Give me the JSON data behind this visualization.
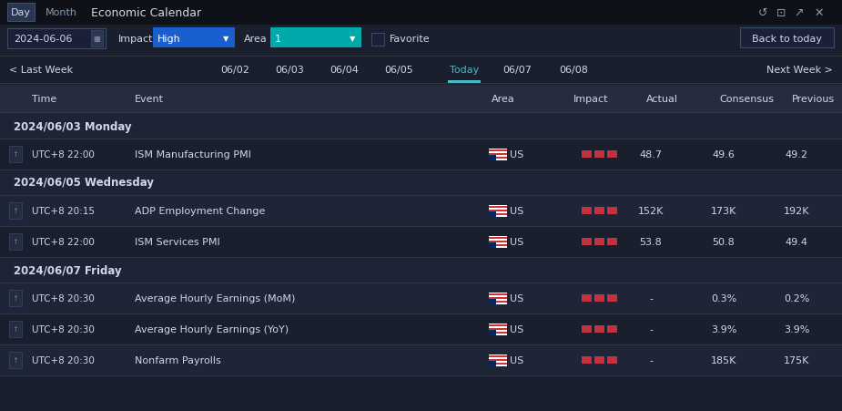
{
  "bg_color": "#1a1f2e",
  "topbar_bg": "#111418",
  "toolbar_bg": "#1a1f2e",
  "nav_bg": "#1a1f2e",
  "tableheader_bg": "#252c3d",
  "section_bg": "#1e2435",
  "row_bg_alt": "#1a1f2e",
  "row_bg": "#1e2536",
  "border_color": "#2d3548",
  "text_white": "#d0d8e8",
  "text_gray": "#6a7a9a",
  "text_cyan": "#4db8c8",
  "highlight_blue": "#1a5fd0",
  "highlight_teal": "#00aaaa",
  "red_bar": "#c83040",
  "title": "Economic Calendar",
  "tab_day": "Day",
  "tab_month": "Month",
  "date_str": "2024-06-06",
  "impact_label": "Impact",
  "impact_value": "High",
  "area_label": "Area",
  "area_value": "1",
  "favorite_label": "Favorite",
  "back_to_today": "Back to today",
  "last_week": "< Last Week",
  "next_week": "Next Week >",
  "nav_dates": [
    "06/02",
    "06/03",
    "06/04",
    "06/05",
    "Today",
    "06/07",
    "06/08"
  ],
  "today_index": 4,
  "col_headers": [
    "Time",
    "Event",
    "Area",
    "Impact",
    "Actual",
    "Consensus",
    "Previous"
  ],
  "sections": [
    {
      "date": "2024/06/03 Monday",
      "rows": [
        {
          "time": "UTC+8 22:00",
          "event": "ISM Manufacturing PMI",
          "actual": "48.7",
          "consensus": "49.6",
          "previous": "49.2"
        }
      ]
    },
    {
      "date": "2024/06/05 Wednesday",
      "rows": [
        {
          "time": "UTC+8 20:15",
          "event": "ADP Employment Change",
          "actual": "152K",
          "consensus": "173K",
          "previous": "192K"
        },
        {
          "time": "UTC+8 22:00",
          "event": "ISM Services PMI",
          "actual": "53.8",
          "consensus": "50.8",
          "previous": "49.4"
        }
      ]
    },
    {
      "date": "2024/06/07 Friday",
      "rows": [
        {
          "time": "UTC+8 20:30",
          "event": "Average Hourly Earnings (MoM)",
          "actual": "-",
          "consensus": "0.3%",
          "previous": "0.2%"
        },
        {
          "time": "UTC+8 20:30",
          "event": "Average Hourly Earnings (YoY)",
          "actual": "-",
          "consensus": "3.9%",
          "previous": "3.9%"
        },
        {
          "time": "UTC+8 20:30",
          "event": "Nonfarm Payrolls",
          "actual": "-",
          "consensus": "185K",
          "previous": "175K"
        }
      ]
    }
  ]
}
